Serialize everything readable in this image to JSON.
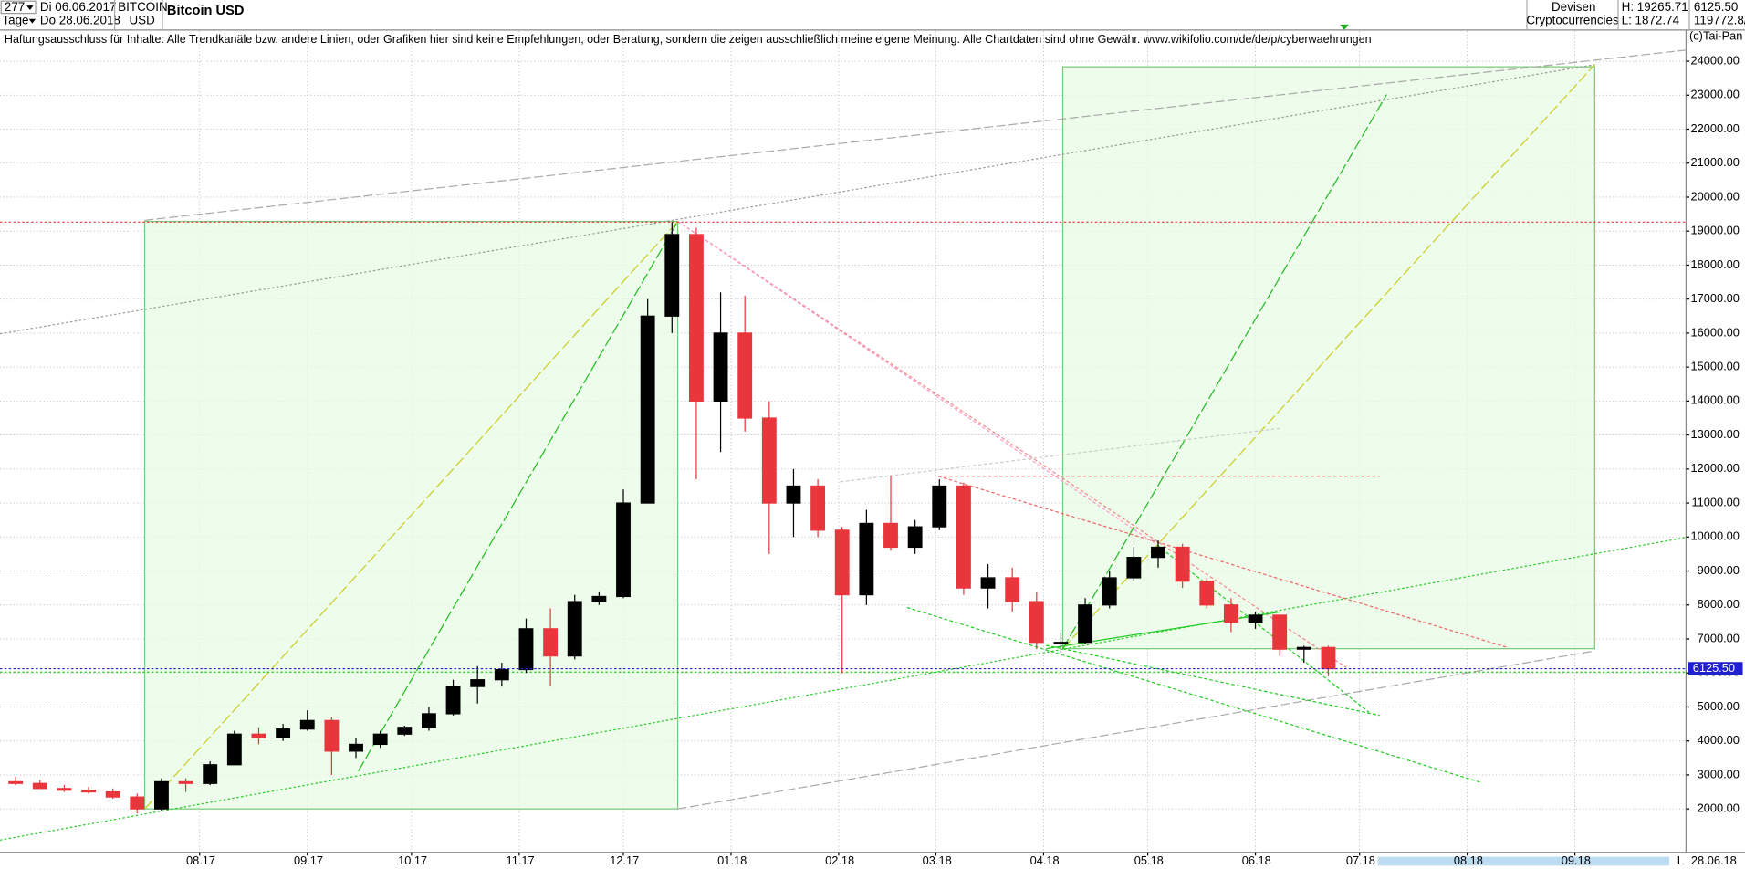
{
  "header": {
    "bars": "277",
    "period": "Tage",
    "from": "Di 06.06.2017",
    "to": "Do 28.06.2018",
    "symbol": "BITCOIN",
    "currency": "USD",
    "group": "Devisen",
    "subgroup": "Cryptocurrencies",
    "extra1": "6125.50",
    "extra2": "119772.8/",
    "disclaimer": "Haftungsausschluss für Inhalte: Alle Trendkanäle bzw. andere Linien, oder Grafiken hier sind keine Empfehlungen, oder Beratung, sondern die zeigen ausschließlich meine eigene Meinung. Alle Chartdaten sind ohne Gewähr.  www.wikifolio.com/de/de/p/cyberwaehrungen",
    "copyright": "(c)Tai-Pan",
    "end_date": "28.06.18",
    "corner": "L"
  },
  "chart_data": {
    "type": "candlestick",
    "title": "Bitcoin USD",
    "x": [
      0,
      7,
      14,
      21,
      28,
      35,
      42,
      49,
      56,
      63,
      70,
      77,
      84,
      91,
      98,
      105,
      112,
      119,
      126,
      133,
      140,
      147,
      154,
      161,
      168,
      175,
      182,
      189,
      196,
      203,
      210,
      217,
      224,
      231,
      238,
      245,
      252,
      259,
      266,
      273,
      280,
      287,
      294,
      301,
      308,
      315,
      322,
      329,
      336,
      343,
      350,
      357,
      364,
      371,
      378
    ],
    "open": [
      2800,
      2750,
      2600,
      2550,
      2500,
      2350,
      2000,
      2800,
      2750,
      3300,
      4200,
      4100,
      4350,
      4600,
      3700,
      3900,
      4200,
      4400,
      4800,
      5600,
      5800,
      6100,
      7300,
      6500,
      8100,
      8250,
      11000,
      16500,
      18900,
      14000,
      16000,
      13500,
      11000,
      11500,
      10200,
      8300,
      10400,
      9700,
      10300,
      11500,
      8500,
      8800,
      8100,
      6900,
      6900,
      8000,
      8800,
      9400,
      9700,
      8700,
      8000,
      7500,
      7700,
      6700,
      6750
    ],
    "high": [
      2950,
      2850,
      2700,
      2650,
      2600,
      2450,
      2900,
      2900,
      3400,
      4300,
      4400,
      4500,
      4900,
      4700,
      4100,
      4300,
      4450,
      5000,
      5800,
      6200,
      6300,
      7600,
      7900,
      8300,
      8400,
      11400,
      17000,
      19265.71,
      19100,
      17200,
      17100,
      14000,
      12000,
      11700,
      10300,
      10800,
      11800,
      10500,
      11700,
      11600,
      9200,
      9100,
      8400,
      7200,
      8200,
      9000,
      9700,
      9900,
      9800,
      8800,
      8200,
      7800,
      7700,
      6800,
      6800
    ],
    "low": [
      2700,
      2600,
      2500,
      2450,
      2300,
      1872.74,
      1950,
      2500,
      2700,
      3300,
      3900,
      4000,
      4300,
      3000,
      3500,
      3800,
      4150,
      4300,
      4750,
      5100,
      5600,
      6000,
      5600,
      6400,
      8000,
      8200,
      11000,
      16000,
      11700,
      12500,
      13100,
      9500,
      10000,
      10000,
      6000,
      8000,
      9600,
      9500,
      10200,
      8300,
      7900,
      7800,
      6700,
      6600,
      6850,
      7900,
      8700,
      9100,
      8500,
      7900,
      7200,
      7300,
      6500,
      6300,
      5900
    ],
    "close": [
      2750,
      2600,
      2550,
      2500,
      2350,
      2000,
      2800,
      2750,
      3300,
      4200,
      4100,
      4350,
      4600,
      3700,
      3900,
      4200,
      4400,
      4800,
      5600,
      5800,
      6100,
      7300,
      6500,
      8100,
      8250,
      11000,
      16500,
      18900,
      14000,
      16000,
      13500,
      11000,
      11500,
      10200,
      8300,
      10400,
      9700,
      10300,
      11500,
      8500,
      8800,
      8100,
      6900,
      6900,
      8000,
      8800,
      9400,
      9700,
      8700,
      8000,
      7500,
      7700,
      6700,
      6750,
      6125.5
    ],
    "up_color": "#000000",
    "down_color": "#e8363c",
    "xlim": [
      -1.5,
      484
    ],
    "xticks": [
      {
        "value": 56,
        "label": "08.17"
      },
      {
        "value": 87,
        "label": "09.17"
      },
      {
        "value": 117,
        "label": "10.17"
      },
      {
        "value": 148,
        "label": "11.17"
      },
      {
        "value": 178,
        "label": "12.17"
      },
      {
        "value": 209,
        "label": "01.18"
      },
      {
        "value": 240,
        "label": "02.18"
      },
      {
        "value": 268,
        "label": "03.18"
      },
      {
        "value": 299,
        "label": "04.18"
      },
      {
        "value": 329,
        "label": "05.18"
      },
      {
        "value": 360,
        "label": "06.18"
      },
      {
        "value": 390,
        "label": "07.18"
      },
      {
        "value": 421,
        "label": "08.18"
      },
      {
        "value": 452,
        "label": "09.18"
      }
    ],
    "ylim": [
      723,
      24884
    ],
    "yticks": [
      {
        "value": 2000,
        "label": "2000.00"
      },
      {
        "value": 3000,
        "label": "3000.00"
      },
      {
        "value": 4000,
        "label": "4000.00"
      },
      {
        "value": 5000,
        "label": "5000.00"
      },
      {
        "value": 6000,
        "label": "6000.00"
      },
      {
        "value": 7000,
        "label": "7000.00"
      },
      {
        "value": 8000,
        "label": "8000.00"
      },
      {
        "value": 9000,
        "label": "9000.00"
      },
      {
        "value": 10000,
        "label": "10000.00"
      },
      {
        "value": 11000,
        "label": "11000.00"
      },
      {
        "value": 12000,
        "label": "12000.00"
      },
      {
        "value": 13000,
        "label": "13000.00"
      },
      {
        "value": 14000,
        "label": "14000.00"
      },
      {
        "value": 15000,
        "label": "15000.00"
      },
      {
        "value": 16000,
        "label": "16000.00"
      },
      {
        "value": 17000,
        "label": "17000.00"
      },
      {
        "value": 18000,
        "label": "18000.00"
      },
      {
        "value": 19000,
        "label": "19000.00"
      },
      {
        "value": 20000,
        "label": "20000.00"
      },
      {
        "value": 21000,
        "label": "21000.00"
      },
      {
        "value": 22000,
        "label": "22000.00"
      },
      {
        "value": 23000,
        "label": "23000.00"
      },
      {
        "value": 24000,
        "label": "24000.00"
      }
    ],
    "grid": true,
    "period_high": {
      "value": 19265.71,
      "label": "H: 19265.71",
      "color": "#e8363c"
    },
    "period_low": {
      "value": 1872.74,
      "label": "L: 1872.74"
    },
    "last_price": {
      "value": 6125.5,
      "label": "6125.50",
      "color": "#2020d0"
    }
  }
}
